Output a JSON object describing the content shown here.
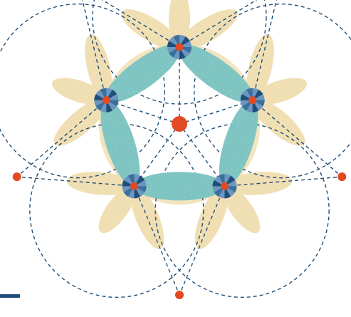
{
  "artwork": {
    "kind": "geometric-network-illustration",
    "colors": {
      "background": "#ffffff",
      "petal_cream": "#f1dfb4",
      "petal_teal": "#3fb6b2",
      "petal_teal_dark": "#2a9c99",
      "node_blue_dark": "#1f4e79",
      "node_blue_mid": "#3a6f9e",
      "node_blue_light": "#6c95bf",
      "node_red": "#e24a22",
      "dashed_line": "#1f4e79",
      "corner_bar": "#1f4e79"
    },
    "icons": {
      "center_node": "red-dot-icon",
      "inner_nodes": "blue-fan-node-icon",
      "outer_nodes": "red-dot-icon"
    }
  }
}
